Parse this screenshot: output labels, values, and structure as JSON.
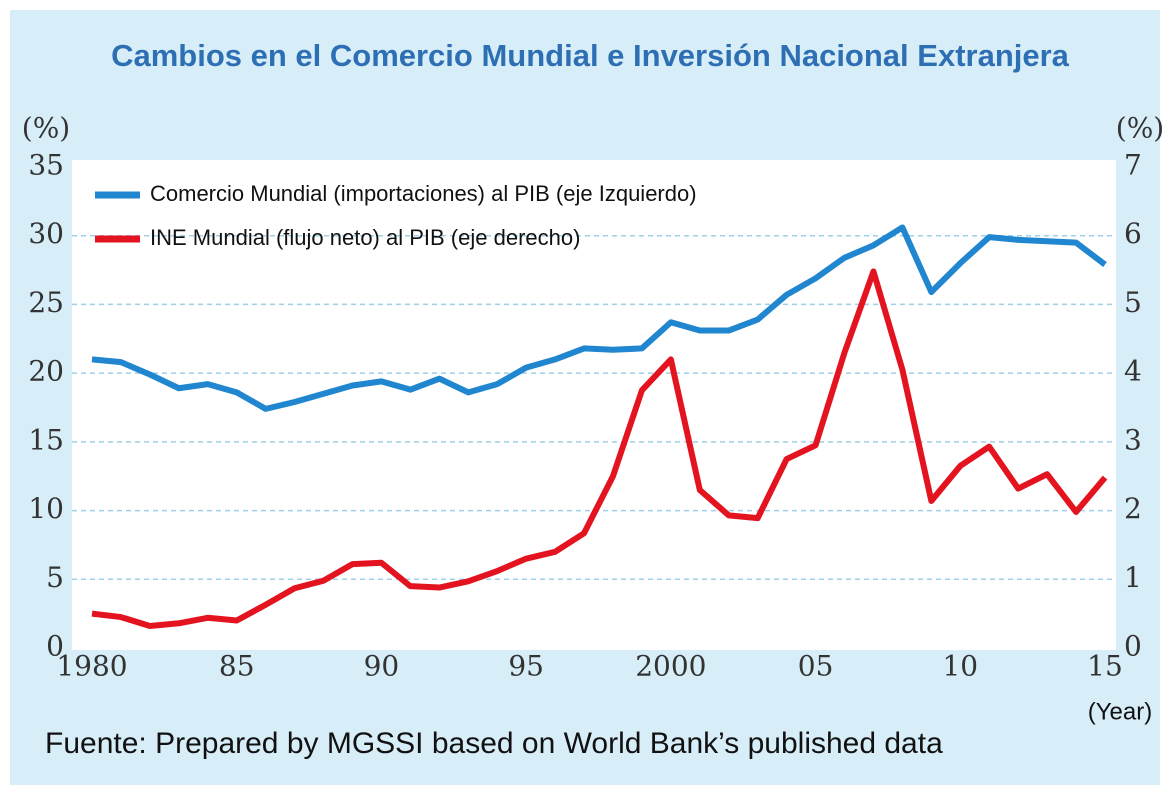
{
  "chart_data": {
    "type": "line",
    "title": "Cambios en el Comercio Mundial e Inversión Nacional Extranjera",
    "ylabel": "(%)",
    "y2label": "(%)",
    "xlabel": "(Year)",
    "source": "Fuente: Prepared by MGSSI based on World Bank’s published data",
    "x": [
      1980,
      1981,
      1982,
      1983,
      1984,
      1985,
      1986,
      1987,
      1988,
      1989,
      1990,
      1991,
      1992,
      1993,
      1994,
      1995,
      1996,
      1997,
      1998,
      1999,
      2000,
      2001,
      2002,
      2003,
      2004,
      2005,
      2006,
      2007,
      2008,
      2009,
      2010,
      2011,
      2012,
      2013,
      2014,
      2015
    ],
    "series": [
      {
        "name": "Comercio Mundial (importaciones) al PIB (eje Izquierdo)",
        "color": "#1f86cf",
        "axis": "y",
        "values": [
          21.0,
          20.8,
          19.9,
          18.9,
          19.2,
          18.6,
          17.4,
          17.9,
          18.5,
          19.1,
          19.4,
          18.8,
          19.6,
          18.6,
          19.2,
          20.4,
          21.0,
          21.8,
          21.7,
          21.8,
          23.7,
          23.1,
          23.1,
          23.9,
          25.7,
          26.9,
          28.4,
          29.3,
          30.6,
          25.9,
          28.0,
          29.9,
          29.7,
          29.6,
          29.5,
          27.9
        ]
      },
      {
        "name": "INE Mundial (flujo neto) al PIB (eje derecho)",
        "color": "#e3141f",
        "axis": "y2",
        "values": [
          0.5,
          0.45,
          0.32,
          0.36,
          0.44,
          0.4,
          0.63,
          0.87,
          0.98,
          1.22,
          1.24,
          0.9,
          0.88,
          0.97,
          1.12,
          1.3,
          1.4,
          1.67,
          2.5,
          3.75,
          4.2,
          2.3,
          1.93,
          1.89,
          2.75,
          2.95,
          4.3,
          5.48,
          4.05,
          2.14,
          2.65,
          2.93,
          2.32,
          2.53,
          1.98,
          2.48
        ]
      }
    ],
    "xlim": [
      1980,
      2015
    ],
    "xticks": [
      1980,
      {
        "value": 1985,
        "label": "85"
      },
      {
        "value": 1990,
        "label": "90"
      },
      {
        "value": 1995,
        "label": "95"
      },
      2000,
      {
        "value": 2005,
        "label": "05"
      },
      {
        "value": 2010,
        "label": "10"
      },
      {
        "value": 2015,
        "label": "15"
      }
    ],
    "ylim": [
      0,
      35
    ],
    "yticks": [
      0,
      5,
      10,
      15,
      20,
      25,
      30,
      35
    ],
    "y2lim": [
      0,
      7
    ],
    "y2ticks": [
      0,
      1,
      2,
      3,
      4,
      5,
      6,
      7
    ],
    "grid": true,
    "legend": "upper left"
  }
}
